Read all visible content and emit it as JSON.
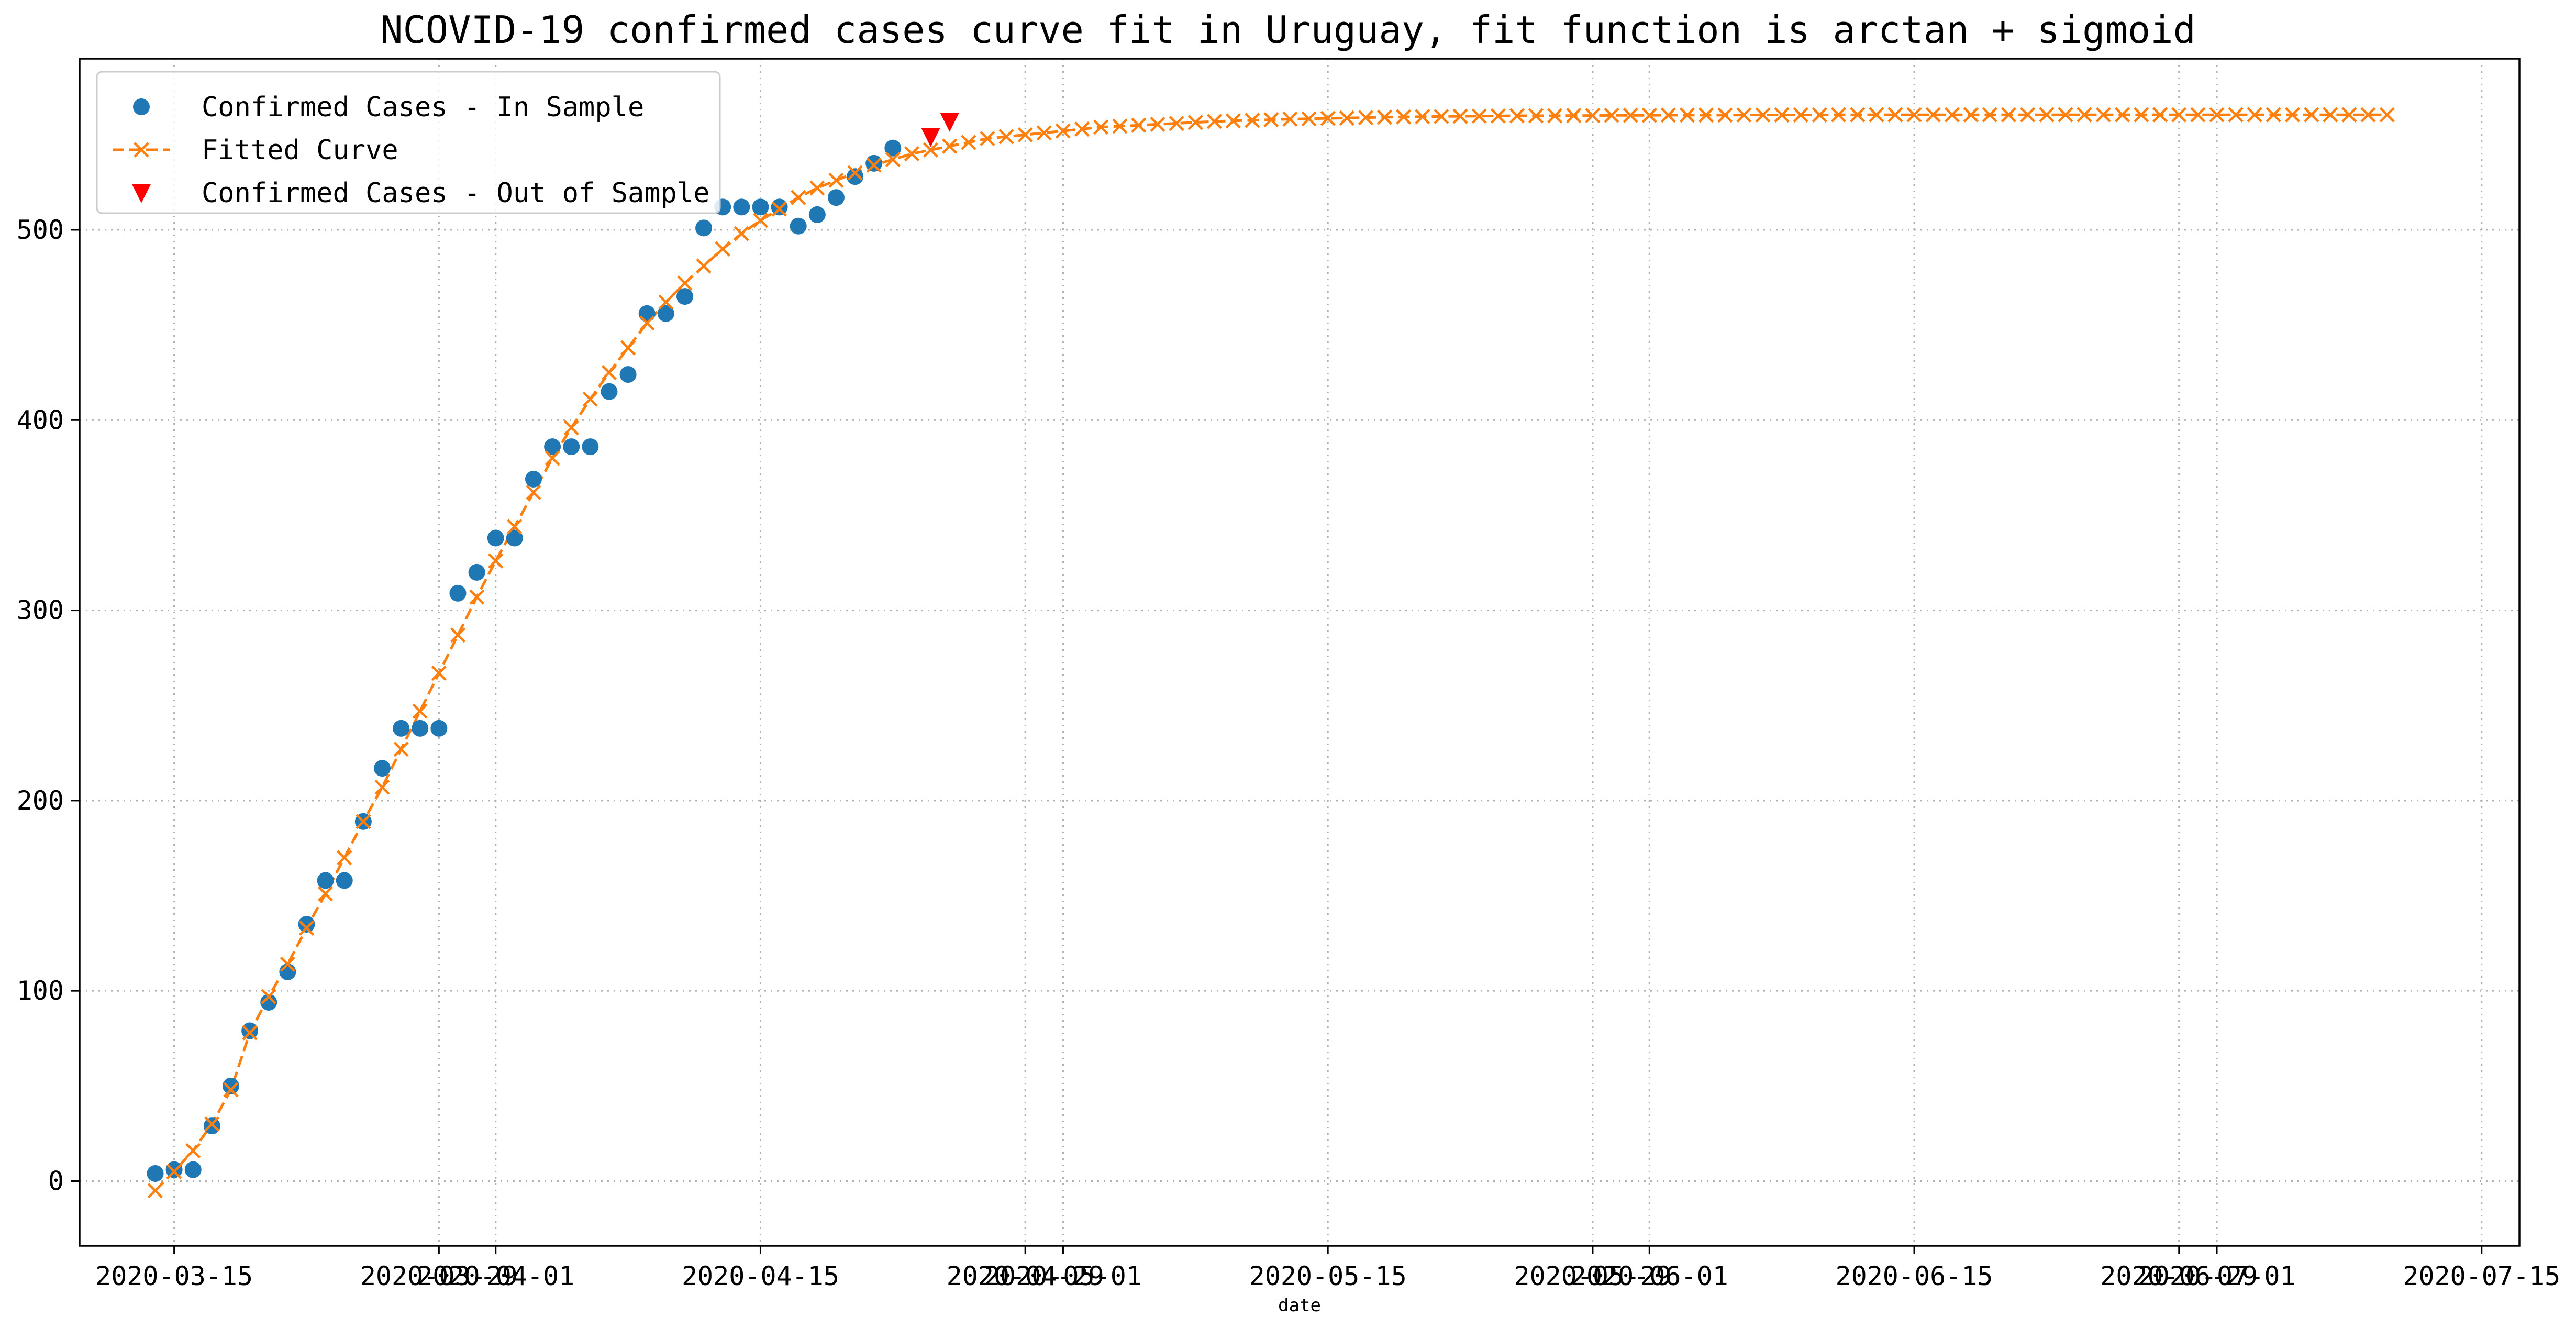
{
  "colors": {
    "in_sample": "#1f77b4",
    "fitted": "#ff7f0e",
    "out_of_sample": "#ff0000"
  },
  "chart_data": {
    "type": "scatter",
    "title": "NCOVID-19 confirmed cases curve fit in Uruguay, fit function is arctan + sigmoid",
    "xlabel": "date",
    "ylabel": "",
    "x_type": "date",
    "xlim": [
      "2020-03-10",
      "2020-07-17"
    ],
    "ylim": [
      -34,
      590
    ],
    "grid": true,
    "legend_position": "upper-left",
    "x_ticks": [
      {
        "date": "2020-03-15",
        "label": "2020-03-15"
      },
      {
        "date": "2020-03-29",
        "label": "2020-03-29"
      },
      {
        "date": "2020-04-01",
        "label": "2020-04-01"
      },
      {
        "date": "2020-04-15",
        "label": "2020-04-15"
      },
      {
        "date": "2020-04-29",
        "label": "2020-04-29"
      },
      {
        "date": "2020-05-01",
        "label": "2020-05-01"
      },
      {
        "date": "2020-05-15",
        "label": "2020-05-15"
      },
      {
        "date": "2020-05-29",
        "label": "2020-05-29"
      },
      {
        "date": "2020-06-01",
        "label": "2020-06-01"
      },
      {
        "date": "2020-06-15",
        "label": "2020-06-15"
      },
      {
        "date": "2020-06-29",
        "label": "2020-06-29"
      },
      {
        "date": "2020-07-01",
        "label": "2020-07-01"
      },
      {
        "date": "2020-07-15",
        "label": "2020-07-15"
      }
    ],
    "y_ticks": [
      0,
      100,
      200,
      300,
      400,
      500
    ],
    "series": [
      {
        "name": "Confirmed Cases - In Sample",
        "marker": "circle",
        "color": "#1f77b4",
        "x_start": "2020-03-14",
        "values": [
          4,
          6,
          6,
          29,
          50,
          79,
          94,
          110,
          135,
          158,
          158,
          189,
          217,
          238,
          238,
          238,
          309,
          320,
          338,
          338,
          369,
          386,
          386,
          386,
          415,
          424,
          456,
          456,
          465,
          501,
          512,
          512,
          512,
          512,
          502,
          508,
          517,
          528,
          535,
          543
        ]
      },
      {
        "name": "Fitted Curve",
        "marker": "x",
        "line": "dashed",
        "color": "#ff7f0e",
        "x_start": "2020-03-14",
        "values": [
          -5,
          5,
          16,
          30,
          48,
          78,
          97,
          114,
          133,
          151,
          170,
          189,
          207,
          227,
          247,
          267,
          287,
          307,
          326,
          344,
          362,
          380,
          396,
          411,
          425,
          438,
          451,
          462,
          472,
          481,
          490,
          498,
          505,
          511,
          517,
          522,
          526,
          530,
          534,
          537,
          540,
          542,
          544,
          546,
          548,
          549,
          550,
          551,
          552,
          553,
          554,
          554.5,
          555,
          555.5,
          556,
          556.5,
          557,
          557.3,
          557.6,
          557.9,
          558.2,
          558.4,
          558.6,
          558.8,
          559,
          559.2,
          559.4,
          559.5,
          559.6,
          559.7,
          559.8,
          559.9,
          560,
          560,
          560,
          560.1,
          560.1,
          560.2,
          560.2,
          560.2,
          560.3,
          560.3,
          560.3,
          560.3,
          560.4,
          560.4,
          560.4,
          560.4,
          560.4,
          560.5,
          560.5,
          560.5,
          560.5,
          560.5,
          560.5,
          560.5,
          560.5,
          560.5,
          560.5,
          560.5,
          560.5,
          560.5,
          560.5,
          560.5,
          560.5,
          560.5,
          560.5,
          560.5,
          560.5,
          560.5,
          560.5,
          560.5,
          560.5,
          560.5,
          560.5,
          560.5,
          560.5,
          560.5,
          560.5
        ]
      },
      {
        "name": "Confirmed Cases - Out of Sample",
        "marker": "triangle-down",
        "color": "#ff0000",
        "x_start": "2020-04-24",
        "values": [
          549,
          557
        ]
      }
    ]
  }
}
